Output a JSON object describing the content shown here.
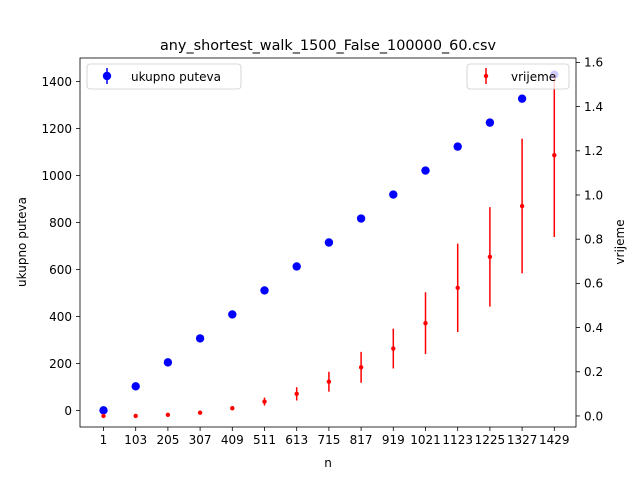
{
  "chart_data": {
    "type": "scatter",
    "title": "any_shortest_walk_1500_False_100000_60.csv",
    "xlabel": "n",
    "ylabel_left": "ukupno puteva",
    "ylabel_right": "vrijeme",
    "x": [
      1,
      103,
      205,
      307,
      409,
      511,
      613,
      715,
      817,
      919,
      1021,
      1123,
      1225,
      1327,
      1429
    ],
    "x_tick_labels": [
      "1",
      "103",
      "205",
      "307",
      "409",
      "511",
      "613",
      "715",
      "817",
      "919",
      "1021",
      "1123",
      "1225",
      "1327",
      "1429"
    ],
    "ylim_left": [
      -70,
      1500
    ],
    "yticks_left": [
      0,
      200,
      400,
      600,
      800,
      1000,
      1200,
      1400
    ],
    "ylim_right": [
      -0.05,
      1.62
    ],
    "yticks_right": [
      "0.0",
      "0.2",
      "0.4",
      "0.6",
      "0.8",
      "1.0",
      "1.2",
      "1.4",
      "1.6"
    ],
    "series": [
      {
        "name": "ukupno puteva",
        "axis": "left",
        "color": "#0000ff",
        "marker": "circle-large",
        "values": [
          1,
          103,
          205,
          307,
          409,
          511,
          613,
          715,
          817,
          919,
          1021,
          1123,
          1225,
          1327,
          1429
        ],
        "errors": [
          0,
          0,
          0,
          0,
          0,
          0,
          0,
          0,
          0,
          0,
          0,
          0,
          0,
          0,
          0
        ]
      },
      {
        "name": "vrijeme",
        "axis": "right",
        "color": "#ff0000",
        "marker": "dot-small",
        "values": [
          0.0,
          0.0,
          0.005,
          0.015,
          0.035,
          0.065,
          0.1,
          0.155,
          0.22,
          0.305,
          0.42,
          0.58,
          0.72,
          0.95,
          1.18
        ],
        "errors": [
          0.002,
          0.002,
          0.004,
          0.006,
          0.01,
          0.018,
          0.03,
          0.045,
          0.07,
          0.09,
          0.14,
          0.2,
          0.225,
          0.305,
          0.37
        ]
      }
    ],
    "legend_left": {
      "label": "ukupno puteva",
      "position": "upper-left"
    },
    "legend_right": {
      "label": "vrijeme",
      "position": "upper-right"
    },
    "grid": false
  }
}
